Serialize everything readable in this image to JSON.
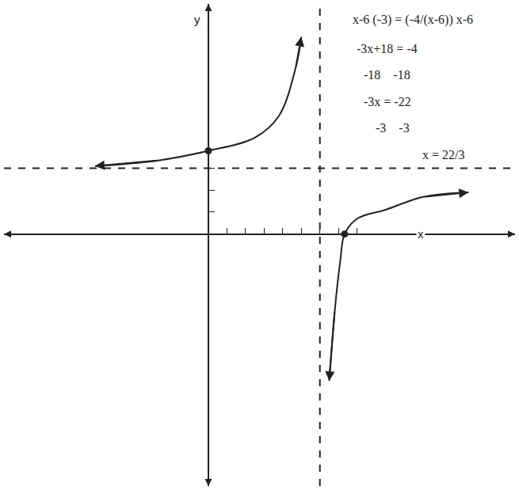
{
  "chart_data": {
    "type": "line",
    "xlabel": "x",
    "ylabel": "y",
    "xlim": [
      -11,
      16.5
    ],
    "ylim": [
      -11.5,
      10.5
    ],
    "xticks": [
      1,
      2,
      3,
      4,
      5,
      6,
      7,
      8
    ],
    "yticks": [
      1,
      2,
      3
    ],
    "tick_labels": false,
    "grid": false,
    "color": "#222222",
    "series": [
      {
        "type": "line",
        "color": "#222222",
        "line_style": "solid",
        "marker": "arrow",
        "x": [
          -6.1,
          -2.7,
          0,
          2.5,
          3.8,
          4.7,
          5
        ],
        "values": [
          3.1,
          3.36,
          3.8,
          4.4,
          5.4,
          7.6,
          9
        ]
      },
      {
        "type": "line",
        "color": "#222222",
        "line_style": "solid",
        "marker": "arrow",
        "x": [
          6.5,
          6.8,
          7.1,
          7.33,
          8,
          9.5,
          11.6,
          14
        ],
        "values": [
          -6.7,
          -3.5,
          -1.2,
          0,
          0.7,
          1.1,
          1.7,
          1.9
        ]
      },
      {
        "type": "line",
        "color": "#222222",
        "line_style": "dashed",
        "x": [
          6,
          6
        ],
        "values": [
          -11.5,
          10.5
        ]
      },
      {
        "type": "line",
        "color": "#222222",
        "line_style": "dashed",
        "x": [
          -11,
          16.5
        ],
        "values": [
          3,
          3
        ]
      },
      {
        "type": "scatter",
        "color": "#222222",
        "marker": "circle",
        "x": [
          0,
          7.33
        ],
        "values": [
          3.8,
          0
        ]
      }
    ],
    "annotations": [
      "x-6 (-3) = (-4/(x-6)) x-6",
      "-3x+18 = -4",
      "-18    -18",
      "-3x = -22",
      "-3    -3",
      "x = 22/3"
    ]
  }
}
